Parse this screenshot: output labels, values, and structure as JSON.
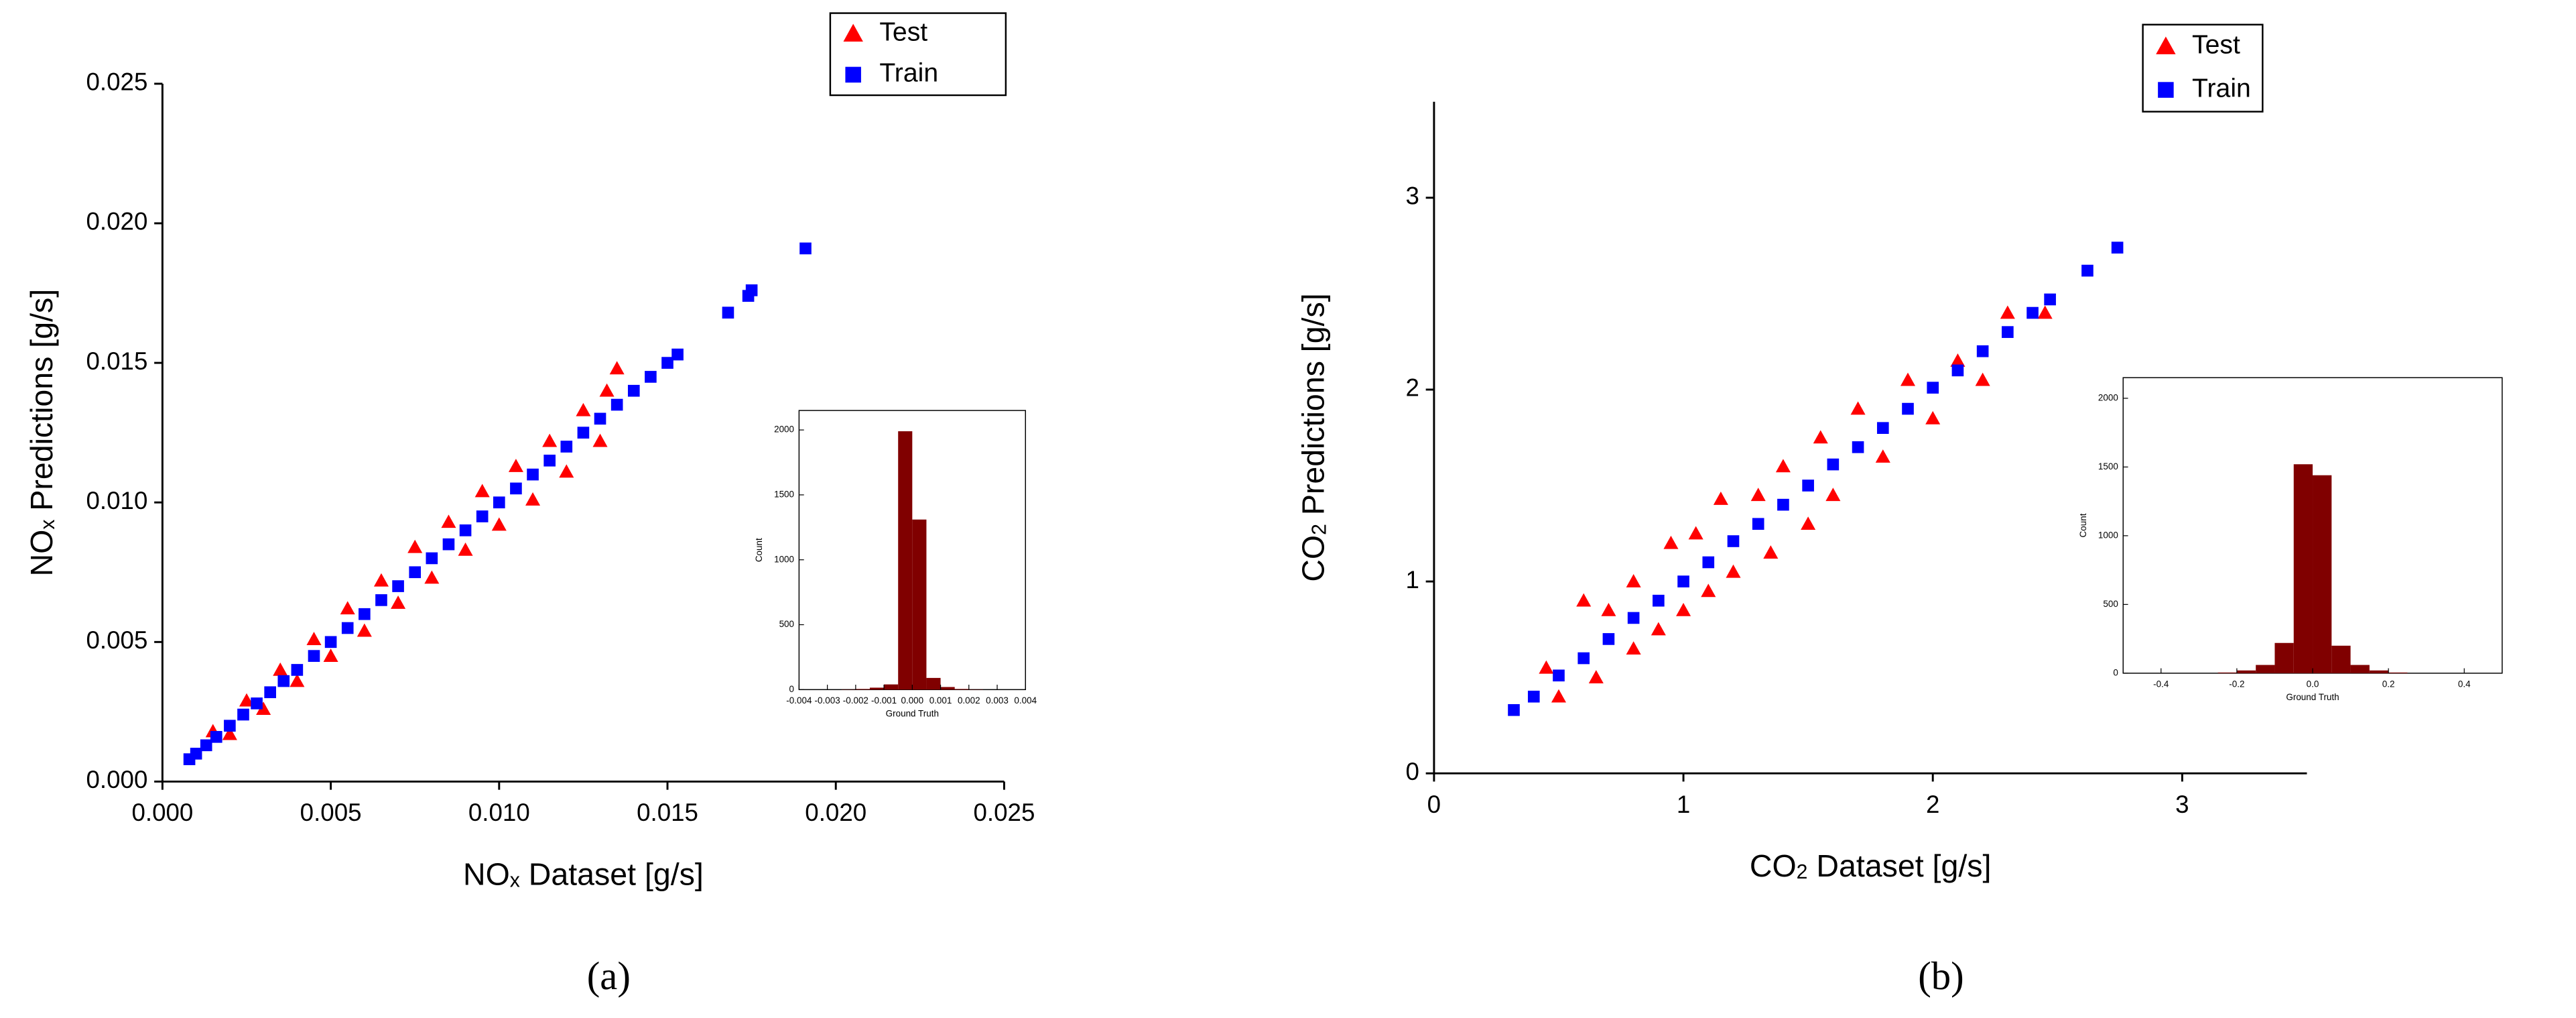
{
  "chart_data": [
    {
      "type": "scatter",
      "panel_label": "(a)",
      "x_label": [
        "NO",
        "x",
        " Dataset [g/s]"
      ],
      "y_label": [
        "NO",
        "x",
        " Predictions [g/s]"
      ],
      "xlim": [
        0,
        0.025
      ],
      "ylim": [
        0,
        0.025
      ],
      "xticks": [
        {
          "value": 0,
          "label": "0.000"
        },
        0.005,
        {
          "value": 0.01,
          "label": "0.010"
        },
        0.015,
        {
          "value": 0.02,
          "label": "0.020"
        },
        0.025
      ],
      "yticks": [
        {
          "value": 0,
          "label": "0.000"
        },
        0.005,
        {
          "value": 0.01,
          "label": "0.010"
        },
        0.015,
        {
          "value": 0.02,
          "label": "0.020"
        },
        0.025
      ],
      "series": [
        {
          "name": "Test",
          "color": "#ff0000",
          "marker": "triangle",
          "x": [
            0.0015,
            0.002,
            0.0025,
            0.003,
            0.0035,
            0.004,
            0.0045,
            0.005,
            0.0055,
            0.006,
            0.0065,
            0.007,
            0.0075,
            0.008,
            0.0085,
            0.009,
            0.0095,
            0.01,
            0.0105,
            0.011,
            0.0115,
            0.012,
            0.0125,
            0.013,
            0.0135,
            0.0132
          ],
          "values": [
            0.0018,
            0.0017,
            0.0029,
            0.0026,
            0.004,
            0.0036,
            0.0051,
            0.0045,
            0.0062,
            0.0054,
            0.0072,
            0.0064,
            0.0084,
            0.0073,
            0.0093,
            0.0083,
            0.0104,
            0.0092,
            0.0113,
            0.0101,
            0.0122,
            0.0111,
            0.0133,
            0.0122,
            0.0148,
            0.014
          ]
        },
        {
          "name": "Train",
          "color": "#0000ff",
          "marker": "square",
          "x": [
            0.0008,
            0.001,
            0.0013,
            0.0016,
            0.002,
            0.0024,
            0.0028,
            0.0032,
            0.0036,
            0.004,
            0.0045,
            0.005,
            0.0055,
            0.006,
            0.0065,
            0.007,
            0.0075,
            0.008,
            0.0085,
            0.009,
            0.0095,
            0.01,
            0.0105,
            0.011,
            0.0115,
            0.012,
            0.0125,
            0.013,
            0.0135,
            0.014,
            0.0145,
            0.015,
            0.0153,
            0.0168,
            0.0174,
            0.0175,
            0.0191
          ],
          "values": [
            0.0008,
            0.001,
            0.0013,
            0.0016,
            0.002,
            0.0024,
            0.0028,
            0.0032,
            0.0036,
            0.004,
            0.0045,
            0.005,
            0.0055,
            0.006,
            0.0065,
            0.007,
            0.0075,
            0.008,
            0.0085,
            0.009,
            0.0095,
            0.01,
            0.0105,
            0.011,
            0.0115,
            0.012,
            0.0125,
            0.013,
            0.0135,
            0.014,
            0.0145,
            0.015,
            0.0153,
            0.0168,
            0.0174,
            0.0176,
            0.0191
          ]
        }
      ]
    },
    {
      "type": "histogram",
      "x_label": "Ground Truth",
      "y_label": "Count",
      "xlim": [
        -0.004,
        0.004
      ],
      "ylim": [
        0,
        2150
      ],
      "xticks": [
        -0.004,
        -0.003,
        -0.002,
        -0.001,
        {
          "value": 0,
          "label": "0.000"
        },
        0.001,
        0.002,
        0.003,
        0.004
      ],
      "yticks": [
        0,
        500,
        1000,
        1500,
        2000
      ],
      "color": "#800000",
      "bins": [
        -0.003,
        -0.0025,
        -0.002,
        -0.0015,
        -0.001,
        -0.0005,
        0,
        0.0005,
        0.001,
        0.0015,
        0.002,
        0.0025,
        0.003
      ],
      "values": [
        0,
        2,
        5,
        15,
        40,
        1990,
        1310,
        90,
        20,
        5,
        2,
        0
      ]
    },
    {
      "type": "scatter",
      "panel_label": "(b)",
      "x_label": [
        "CO",
        "2",
        " Dataset [g/s]"
      ],
      "y_label": [
        "CO",
        "2",
        " Predictions [g/s]"
      ],
      "xlim": [
        0,
        3.5
      ],
      "ylim": [
        0,
        3.5
      ],
      "xticks": [
        0,
        1,
        2,
        3
      ],
      "yticks": [
        0,
        1,
        2,
        3
      ],
      "series": [
        {
          "name": "Test",
          "color": "#ff0000",
          "marker": "triangle",
          "x": [
            0.45,
            0.5,
            0.6,
            0.65,
            0.7,
            0.8,
            0.8,
            0.9,
            0.95,
            1.0,
            1.05,
            1.1,
            1.15,
            1.2,
            1.3,
            1.35,
            1.4,
            1.5,
            1.55,
            1.6,
            1.7,
            1.8,
            1.9,
            2.0,
            2.1,
            2.2,
            2.3,
            2.45
          ],
          "values": [
            0.55,
            0.4,
            0.9,
            0.5,
            0.85,
            0.65,
            1.0,
            0.75,
            1.2,
            0.85,
            1.25,
            0.95,
            1.43,
            1.05,
            1.45,
            1.15,
            1.6,
            1.3,
            1.75,
            1.45,
            1.9,
            1.65,
            2.05,
            1.85,
            2.15,
            2.05,
            2.4,
            2.4
          ]
        },
        {
          "name": "Train",
          "color": "#0000ff",
          "marker": "square",
          "x": [
            0.32,
            0.4,
            0.5,
            0.6,
            0.7,
            0.8,
            0.9,
            1.0,
            1.1,
            1.2,
            1.3,
            1.4,
            1.5,
            1.6,
            1.7,
            1.8,
            1.9,
            2.0,
            2.1,
            2.2,
            2.3,
            2.4,
            2.47,
            2.62,
            2.74
          ],
          "values": [
            0.33,
            0.4,
            0.51,
            0.6,
            0.7,
            0.81,
            0.9,
            1.0,
            1.1,
            1.21,
            1.3,
            1.4,
            1.5,
            1.61,
            1.7,
            1.8,
            1.9,
            2.01,
            2.1,
            2.2,
            2.3,
            2.4,
            2.47,
            2.62,
            2.74
          ]
        }
      ]
    },
    {
      "type": "histogram",
      "x_label": "Ground Truth",
      "y_label": "Count",
      "xlim": [
        -0.5,
        0.5
      ],
      "ylim": [
        0,
        2150
      ],
      "xticks": [
        -0.4,
        -0.2,
        {
          "value": 0,
          "label": "0.0"
        },
        0.2,
        0.4
      ],
      "yticks": [
        0,
        500,
        1000,
        1500,
        2000
      ],
      "color": "#800000",
      "bins": [
        -0.25,
        -0.2,
        -0.15,
        -0.1,
        -0.05,
        0,
        0.05,
        0.1,
        0.15,
        0.2,
        0.25
      ],
      "values": [
        5,
        20,
        60,
        220,
        1520,
        1440,
        200,
        60,
        20,
        5
      ]
    }
  ]
}
